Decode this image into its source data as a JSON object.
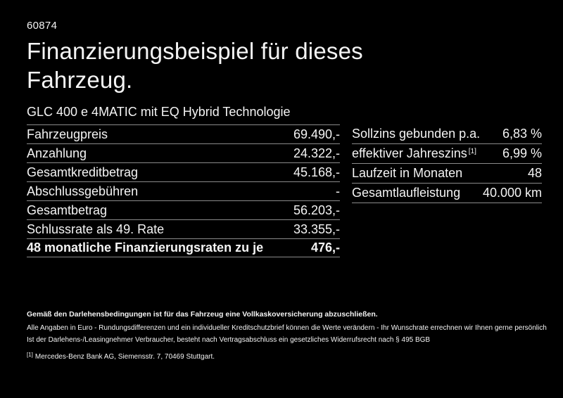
{
  "colors": {
    "background": "#000000",
    "text": "#f4f4f4",
    "divider": "#8a8a8a"
  },
  "page": {
    "ref_number": "60874",
    "title_line1": "Finanzierungsbeispiel für dieses",
    "title_line2": "Fahrzeug.",
    "subtitle": "GLC 400 e 4MATIC mit EQ Hybrid Technologie"
  },
  "finance_table": {
    "rows": [
      {
        "label": "Fahrzeugpreis",
        "value": "69.490,-"
      },
      {
        "label": "Anzahlung",
        "value": "24.322,-"
      },
      {
        "label": "Gesamtkreditbetrag",
        "value": "45.168,-"
      },
      {
        "label": "Abschlussgebühren",
        "value": "-"
      },
      {
        "label": "Gesamtbetrag",
        "value": "56.203,-"
      },
      {
        "label": "Schlussrate als 49. Rate",
        "value": "33.355,-"
      },
      {
        "label": "48 monatliche Finanzierungsraten zu je",
        "value": "476,-"
      }
    ]
  },
  "conditions_table": {
    "rows": [
      {
        "label": "Sollzins gebunden p.a.",
        "marker": "",
        "value": "6,83 %"
      },
      {
        "label": "effektiver Jahreszins",
        "marker": "[1]",
        "value": "6,99 %"
      },
      {
        "label": "Laufzeit in Monaten",
        "marker": "",
        "value": "48"
      },
      {
        "label": "Gesamtlaufleistung",
        "marker": "",
        "value": "40.000 km"
      }
    ]
  },
  "footer": {
    "insurance_note": "Gemäß den Darlehensbedingungen ist für das Fahrzeug eine Vollkaskoversicherung abzuschließen.",
    "note_line1": "Alle Angaben in Euro - Rundungsdifferenzen und ein individueller Kreditschutzbrief können die Werte verändern - Ihr Wunschrate errechnen wir Ihnen gerne persönlich",
    "note_line2": "Ist der Darlehens-/Leasingnehmer Verbraucher, besteht nach Vertragsabschluss ein gesetzliches Widerrufsrecht nach § 495 BGB",
    "footnote_marker": "[1]",
    "footnote_text": "Mercedes-Benz Bank AG, Siemensstr. 7, 70469 Stuttgart."
  }
}
